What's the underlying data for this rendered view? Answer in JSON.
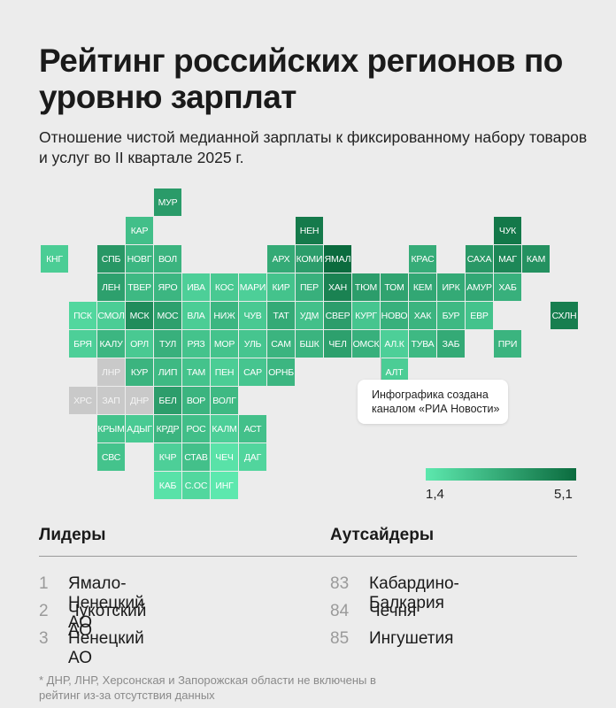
{
  "title": "Рейтинг российских регионов по уровню зарплат",
  "subtitle": "Отношение чистой медианной зарплаты к фиксированному набору товаров и услуг во II квартале 2025 г.",
  "annotation": "Инфографика создана каналом «РИА Новости»",
  "legend": {
    "min": "1,4",
    "max": "5,1",
    "min_color": "#5de8ae",
    "max_color": "#0b6b3e"
  },
  "colors": {
    "excluded": "#c9c9c9",
    "background": "#ececec"
  },
  "leaders": {
    "heading": "Лидеры",
    "items": [
      {
        "rank": "1",
        "name": "Ямало-Ненецкий АО"
      },
      {
        "rank": "2",
        "name": "Чукотский АО"
      },
      {
        "rank": "3",
        "name": "Ненецкий АО"
      }
    ]
  },
  "outsiders": {
    "heading": "Аутсайдеры",
    "items": [
      {
        "rank": "83",
        "name": "Кабардино-Балкария"
      },
      {
        "rank": "84",
        "name": "Чечня"
      },
      {
        "rank": "85",
        "name": "Ингушетия"
      }
    ]
  },
  "footnote": "* ДНР, ЛНР, Херсонская и Запорожская области не включены в рейтинг из-за отсутствия данных",
  "regions": [
    {
      "code": "МУР",
      "row": 0,
      "col": 5,
      "level": 0.62
    },
    {
      "code": "КАР",
      "row": 1,
      "col": 4,
      "level": 0.33
    },
    {
      "code": "НЕН",
      "row": 1,
      "col": 10,
      "level": 0.88
    },
    {
      "code": "ЧУК",
      "row": 1,
      "col": 17,
      "level": 0.9
    },
    {
      "code": "КНГ",
      "row": 2,
      "col": 1,
      "level": 0.22
    },
    {
      "code": "СПБ",
      "row": 2,
      "col": 3,
      "level": 0.65
    },
    {
      "code": "НОВГ",
      "row": 2,
      "col": 4,
      "level": 0.4
    },
    {
      "code": "ВОЛ",
      "row": 2,
      "col": 5,
      "level": 0.42
    },
    {
      "code": "АРХ",
      "row": 2,
      "col": 9,
      "level": 0.5
    },
    {
      "code": "КОМИ",
      "row": 2,
      "col": 10,
      "level": 0.6
    },
    {
      "code": "ЯМАЛ",
      "row": 2,
      "col": 11,
      "level": 1.0
    },
    {
      "code": "КРАС",
      "row": 2,
      "col": 14,
      "level": 0.48
    },
    {
      "code": "САХА",
      "row": 2,
      "col": 16,
      "level": 0.64
    },
    {
      "code": "МАГ",
      "row": 2,
      "col": 17,
      "level": 0.78
    },
    {
      "code": "КАМ",
      "row": 2,
      "col": 18,
      "level": 0.7
    },
    {
      "code": "ЛЕН",
      "row": 3,
      "col": 3,
      "level": 0.58
    },
    {
      "code": "ТВЕР",
      "row": 3,
      "col": 4,
      "level": 0.38
    },
    {
      "code": "ЯРО",
      "row": 3,
      "col": 5,
      "level": 0.4
    },
    {
      "code": "ИВА",
      "row": 3,
      "col": 6,
      "level": 0.2
    },
    {
      "code": "КОС",
      "row": 3,
      "col": 7,
      "level": 0.25
    },
    {
      "code": "МАРИ",
      "row": 3,
      "col": 8,
      "level": 0.2
    },
    {
      "code": "КИР",
      "row": 3,
      "col": 9,
      "level": 0.3
    },
    {
      "code": "ПЕР",
      "row": 3,
      "col": 10,
      "level": 0.45
    },
    {
      "code": "ХАН",
      "row": 3,
      "col": 11,
      "level": 0.82
    },
    {
      "code": "ТЮМ",
      "row": 3,
      "col": 12,
      "level": 0.6
    },
    {
      "code": "ТОМ",
      "row": 3,
      "col": 13,
      "level": 0.55
    },
    {
      "code": "КЕМ",
      "row": 3,
      "col": 14,
      "level": 0.52
    },
    {
      "code": "ИРК",
      "row": 3,
      "col": 15,
      "level": 0.5
    },
    {
      "code": "АМУР",
      "row": 3,
      "col": 16,
      "level": 0.52
    },
    {
      "code": "ХАБ",
      "row": 3,
      "col": 17,
      "level": 0.45
    },
    {
      "code": "ПСК",
      "row": 4,
      "col": 2,
      "level": 0.14
    },
    {
      "code": "СМОЛ",
      "row": 4,
      "col": 3,
      "level": 0.22
    },
    {
      "code": "МСК",
      "row": 4,
      "col": 4,
      "level": 0.74
    },
    {
      "code": "МОС",
      "row": 4,
      "col": 5,
      "level": 0.58
    },
    {
      "code": "ВЛА",
      "row": 4,
      "col": 6,
      "level": 0.22
    },
    {
      "code": "НИЖ",
      "row": 4,
      "col": 7,
      "level": 0.4
    },
    {
      "code": "ЧУВ",
      "row": 4,
      "col": 8,
      "level": 0.25
    },
    {
      "code": "ТАТ",
      "row": 4,
      "col": 9,
      "level": 0.5
    },
    {
      "code": "УДМ",
      "row": 4,
      "col": 10,
      "level": 0.32
    },
    {
      "code": "СВЕР",
      "row": 4,
      "col": 11,
      "level": 0.6
    },
    {
      "code": "КУРГ",
      "row": 4,
      "col": 12,
      "level": 0.28
    },
    {
      "code": "НОВО",
      "row": 4,
      "col": 13,
      "level": 0.45
    },
    {
      "code": "ХАК",
      "row": 4,
      "col": 14,
      "level": 0.42
    },
    {
      "code": "БУР",
      "row": 4,
      "col": 15,
      "level": 0.38
    },
    {
      "code": "ЕВР",
      "row": 4,
      "col": 16,
      "level": 0.3
    },
    {
      "code": "СХЛН",
      "row": 4,
      "col": 19,
      "level": 0.85
    },
    {
      "code": "БРЯ",
      "row": 5,
      "col": 2,
      "level": 0.2
    },
    {
      "code": "КАЛУ",
      "row": 5,
      "col": 3,
      "level": 0.4
    },
    {
      "code": "ОРЛ",
      "row": 5,
      "col": 4,
      "level": 0.25
    },
    {
      "code": "ТУЛ",
      "row": 5,
      "col": 5,
      "level": 0.45
    },
    {
      "code": "РЯЗ",
      "row": 5,
      "col": 6,
      "level": 0.3
    },
    {
      "code": "МОР",
      "row": 5,
      "col": 7,
      "level": 0.3
    },
    {
      "code": "УЛЬ",
      "row": 5,
      "col": 8,
      "level": 0.28
    },
    {
      "code": "САМ",
      "row": 5,
      "col": 9,
      "level": 0.42
    },
    {
      "code": "БШК",
      "row": 5,
      "col": 10,
      "level": 0.42
    },
    {
      "code": "ЧЕЛ",
      "row": 5,
      "col": 11,
      "level": 0.58
    },
    {
      "code": "ОМСК",
      "row": 5,
      "col": 12,
      "level": 0.45
    },
    {
      "code": "АЛ.К",
      "row": 5,
      "col": 13,
      "level": 0.2
    },
    {
      "code": "ТУВА",
      "row": 5,
      "col": 14,
      "level": 0.38
    },
    {
      "code": "ЗАБ",
      "row": 5,
      "col": 15,
      "level": 0.5
    },
    {
      "code": "ПРИ",
      "row": 5,
      "col": 17,
      "level": 0.42
    },
    {
      "code": "ЛНР",
      "row": 6,
      "col": 3,
      "level": null
    },
    {
      "code": "КУР",
      "row": 6,
      "col": 4,
      "level": 0.42
    },
    {
      "code": "ЛИП",
      "row": 6,
      "col": 5,
      "level": 0.38
    },
    {
      "code": "ТАМ",
      "row": 6,
      "col": 6,
      "level": 0.3
    },
    {
      "code": "ПЕН",
      "row": 6,
      "col": 7,
      "level": 0.22
    },
    {
      "code": "САР",
      "row": 6,
      "col": 8,
      "level": 0.28
    },
    {
      "code": "ОРНБ",
      "row": 6,
      "col": 9,
      "level": 0.4
    },
    {
      "code": "АЛТ",
      "row": 6,
      "col": 13,
      "level": 0.22
    },
    {
      "code": "ХРС",
      "row": 7,
      "col": 2,
      "level": null
    },
    {
      "code": "ЗАП",
      "row": 7,
      "col": 3,
      "level": null
    },
    {
      "code": "ДНР",
      "row": 7,
      "col": 4,
      "level": null
    },
    {
      "code": "БЕЛ",
      "row": 7,
      "col": 5,
      "level": 0.6
    },
    {
      "code": "ВОР",
      "row": 7,
      "col": 6,
      "level": 0.42
    },
    {
      "code": "ВОЛГ",
      "row": 7,
      "col": 7,
      "level": 0.38
    },
    {
      "code": "КРЫМ",
      "row": 8,
      "col": 3,
      "level": 0.3
    },
    {
      "code": "АДЫГ",
      "row": 8,
      "col": 4,
      "level": 0.24
    },
    {
      "code": "КРДР",
      "row": 8,
      "col": 5,
      "level": 0.42
    },
    {
      "code": "РОС",
      "row": 8,
      "col": 6,
      "level": 0.34
    },
    {
      "code": "КАЛМ",
      "row": 8,
      "col": 7,
      "level": 0.2
    },
    {
      "code": "АСТ",
      "row": 8,
      "col": 8,
      "level": 0.32
    },
    {
      "code": "СВС",
      "row": 9,
      "col": 3,
      "level": 0.3
    },
    {
      "code": "КЧР",
      "row": 9,
      "col": 5,
      "level": 0.2
    },
    {
      "code": "СТАВ",
      "row": 9,
      "col": 6,
      "level": 0.32
    },
    {
      "code": "ЧЕЧ",
      "row": 9,
      "col": 7,
      "level": 0.05
    },
    {
      "code": "ДАГ",
      "row": 9,
      "col": 8,
      "level": 0.15
    },
    {
      "code": "КАБ",
      "row": 10,
      "col": 5,
      "level": 0.05
    },
    {
      "code": "С.ОС",
      "row": 10,
      "col": 6,
      "level": 0.14
    },
    {
      "code": "ИНГ",
      "row": 10,
      "col": 7,
      "level": 0.0
    }
  ]
}
